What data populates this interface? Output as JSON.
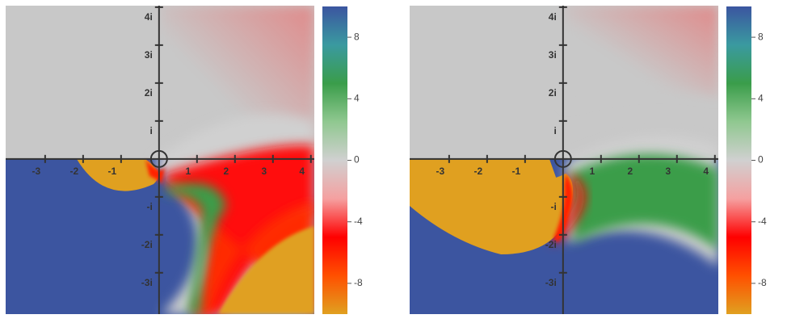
{
  "chart_data": [
    {
      "type": "domain-coloring",
      "xlim": [
        -4.04,
        4.09
      ],
      "ylim": [
        -4.09,
        4.04
      ],
      "xticks": [
        -3,
        -2,
        -1,
        1,
        2,
        3,
        4
      ],
      "yticks": [
        {
          "value": 4,
          "label": "4i"
        },
        {
          "value": 3,
          "label": "3i"
        },
        {
          "value": 2,
          "label": "2i"
        },
        {
          "value": 1,
          "label": "i"
        },
        {
          "value": -1,
          "label": "-i"
        },
        {
          "value": -2,
          "label": "-2i"
        },
        {
          "value": -3,
          "label": "-3i"
        }
      ],
      "colorbar": {
        "clim": [
          -10,
          10
        ],
        "ticks": [
          -8,
          -4,
          0,
          4,
          8
        ],
        "colors": [
          "#e0a020",
          "#ff5000",
          "#ff0000",
          "#f5a0a0",
          "#d0d0d0",
          "#90c890",
          "#3a9d4a",
          "#3a9aa0",
          "#3b55a0"
        ]
      }
    },
    {
      "type": "domain-coloring",
      "xlim": [
        -4.04,
        4.09
      ],
      "ylim": [
        -4.09,
        4.04
      ],
      "xticks": [
        -3,
        -2,
        -1,
        1,
        2,
        3,
        4
      ],
      "yticks": [
        {
          "value": 4,
          "label": "4i"
        },
        {
          "value": 3,
          "label": "3i"
        },
        {
          "value": 2,
          "label": "2i"
        },
        {
          "value": 1,
          "label": "i"
        },
        {
          "value": -1,
          "label": "-i"
        },
        {
          "value": -2,
          "label": "-2i"
        },
        {
          "value": -3,
          "label": "-3i"
        }
      ],
      "colorbar": {
        "clim": [
          -10,
          10
        ],
        "ticks": [
          -8,
          -4,
          0,
          4,
          8
        ],
        "colors": [
          "#e0a020",
          "#ff5000",
          "#ff0000",
          "#f5a0a0",
          "#d0d0d0",
          "#90c890",
          "#3a9d4a",
          "#3a9aa0",
          "#3b55a0"
        ]
      }
    }
  ]
}
